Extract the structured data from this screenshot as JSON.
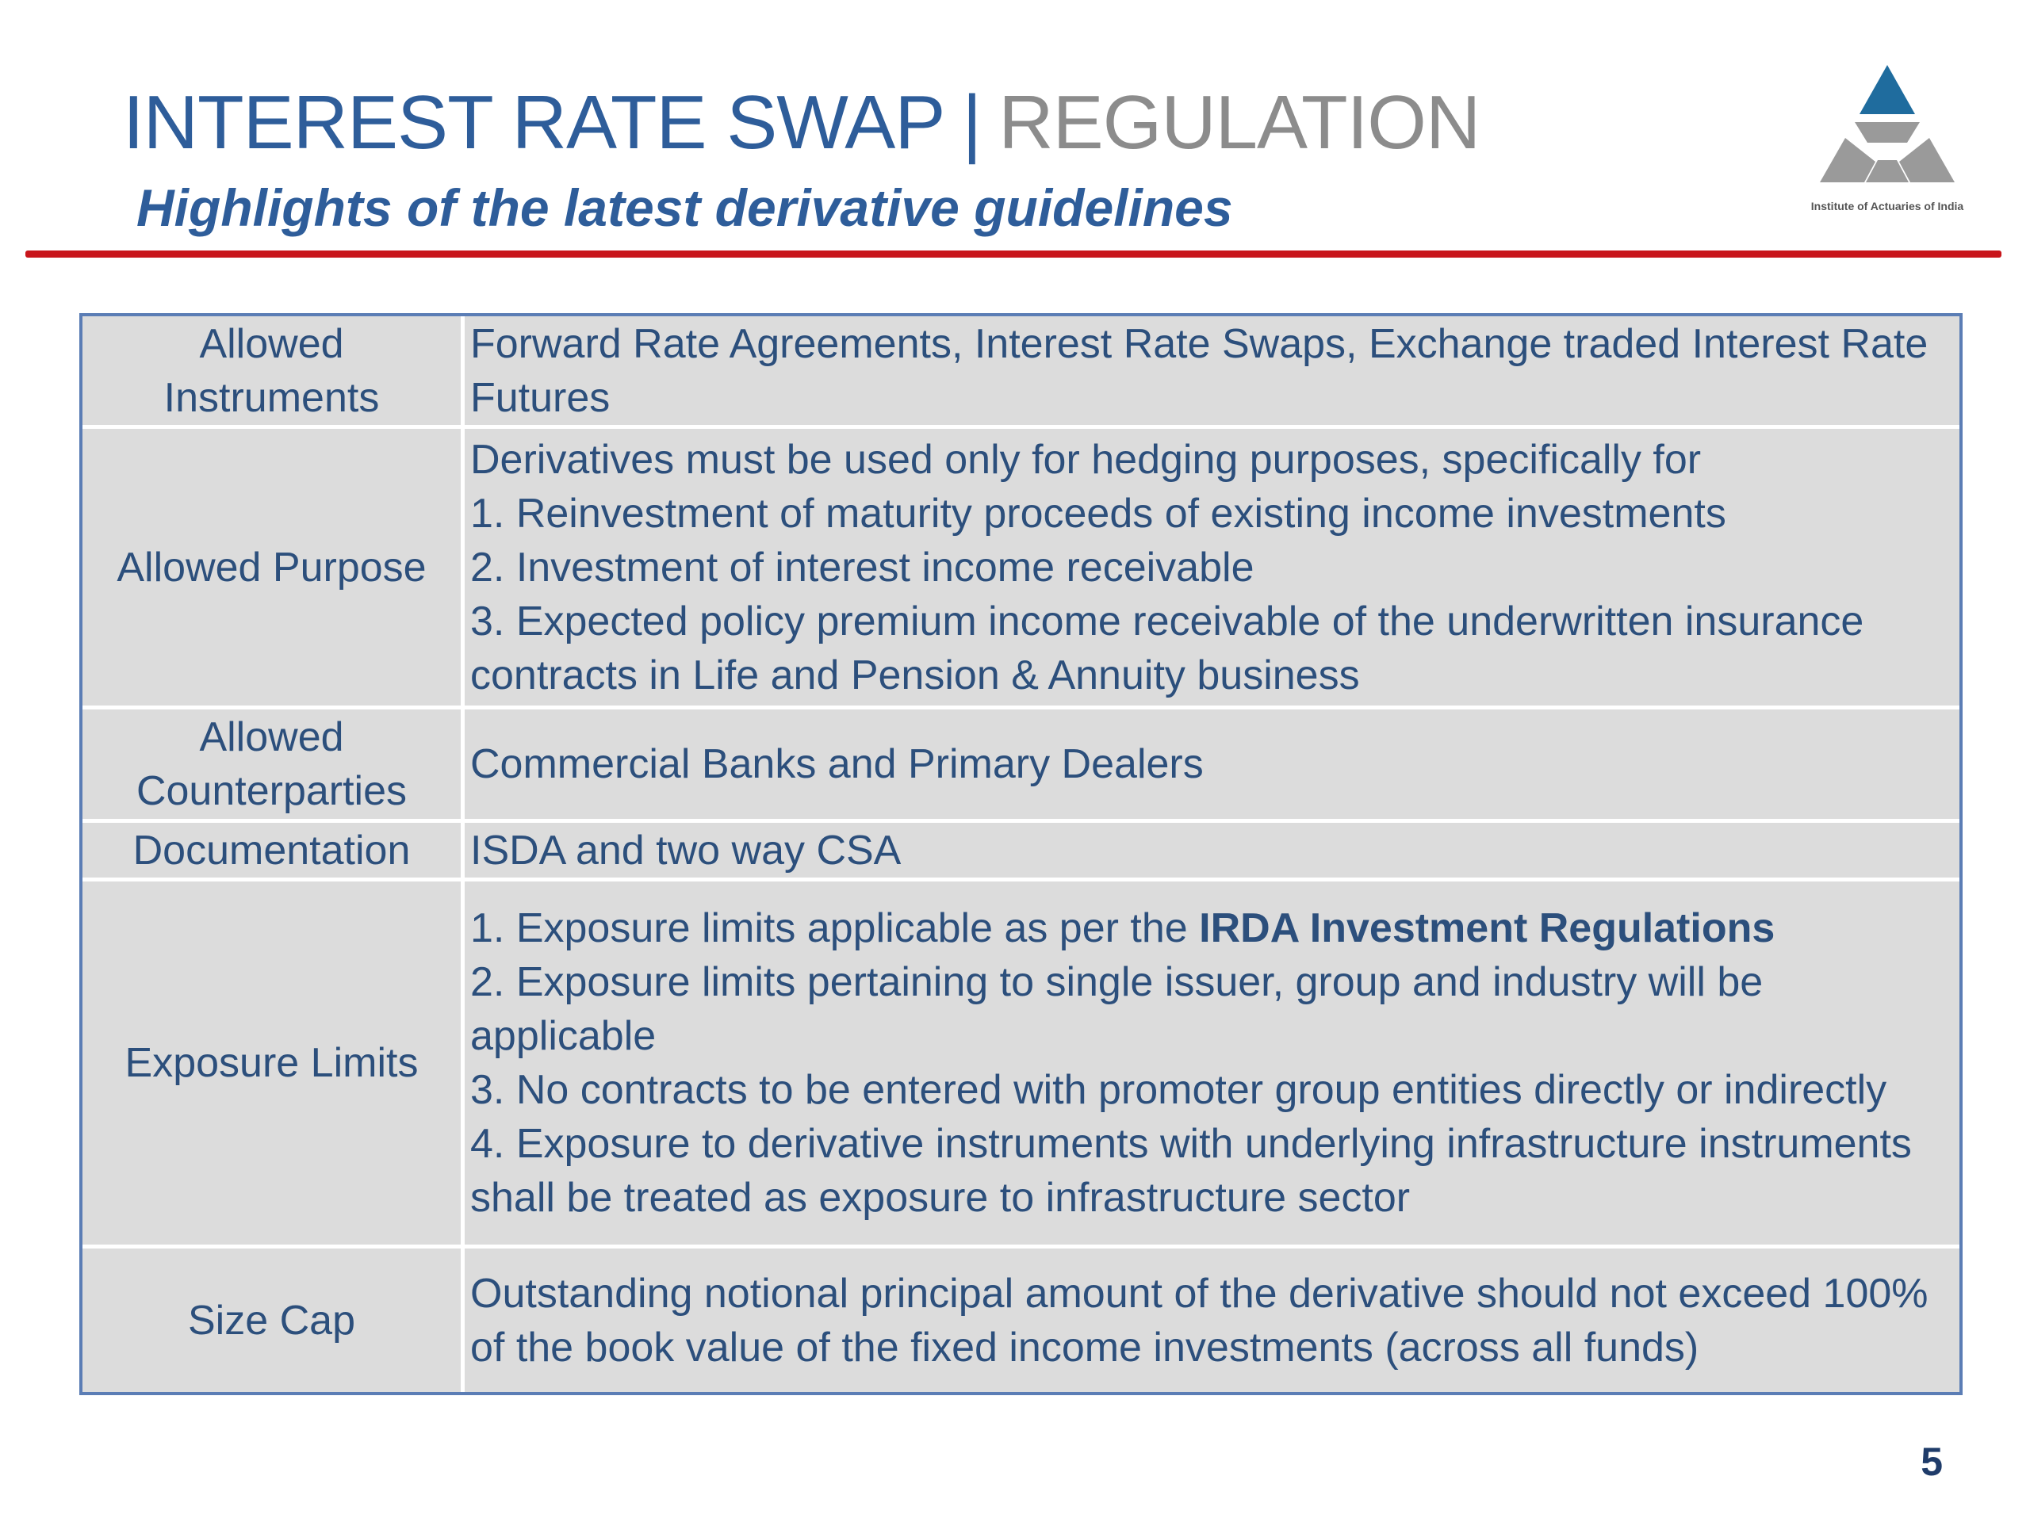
{
  "header": {
    "title_primary": "INTEREST RATE SWAP",
    "title_separator": "|",
    "title_secondary": "REGULATION",
    "subtitle": "Highlights of the latest derivative guidelines"
  },
  "logo": {
    "icon": "institute-of-actuaries-logo-icon",
    "text": "Institute of Actuaries of India",
    "colors": {
      "top": "#1f6c9e",
      "lower": "#9a9a9a"
    }
  },
  "table": {
    "rows": [
      {
        "label": "Allowed Instruments",
        "lines": [
          "Forward Rate Agreements, Interest Rate Swaps, Exchange traded Interest Rate Futures"
        ]
      },
      {
        "label": "Allowed Purpose",
        "lines": [
          "Derivatives must be used only for hedging purposes, specifically for",
          "1. Reinvestment of maturity proceeds of existing income investments",
          "2. Investment of interest income receivable",
          "3. Expected policy premium income receivable of the underwritten insurance contracts in Life and Pension & Annuity business"
        ]
      },
      {
        "label": "Allowed Counterparties",
        "lines": [
          "Commercial Banks and Primary Dealers"
        ]
      },
      {
        "label": "Documentation",
        "lines": [
          "ISDA and two way CSA"
        ]
      },
      {
        "label": "Exposure Limits",
        "line1_prefix": "1. Exposure limits applicable as per the ",
        "line1_bold": "IRDA Investment Regulations",
        "lines_rest": [
          "2. Exposure limits pertaining to single issuer, group and industry will be applicable",
          "3. No contracts to be entered with promoter group entities directly or indirectly",
          "4. Exposure to derivative instruments with underlying infrastructure instruments shall be treated as exposure to infrastructure sector"
        ]
      },
      {
        "label": "Size Cap",
        "lines": [
          "Outstanding notional principal amount of the derivative should not exceed 100% of the book value of the fixed income investments (across all funds)"
        ]
      }
    ]
  },
  "footer": {
    "page_number": "5"
  },
  "colors": {
    "title_blue": "#2e5d9a",
    "title_grey": "#8c8c8c",
    "rule_red": "#c8151b",
    "table_fill": "#dcdcdc",
    "table_border": "#5b7db5",
    "table_text": "#2c4f7c"
  }
}
